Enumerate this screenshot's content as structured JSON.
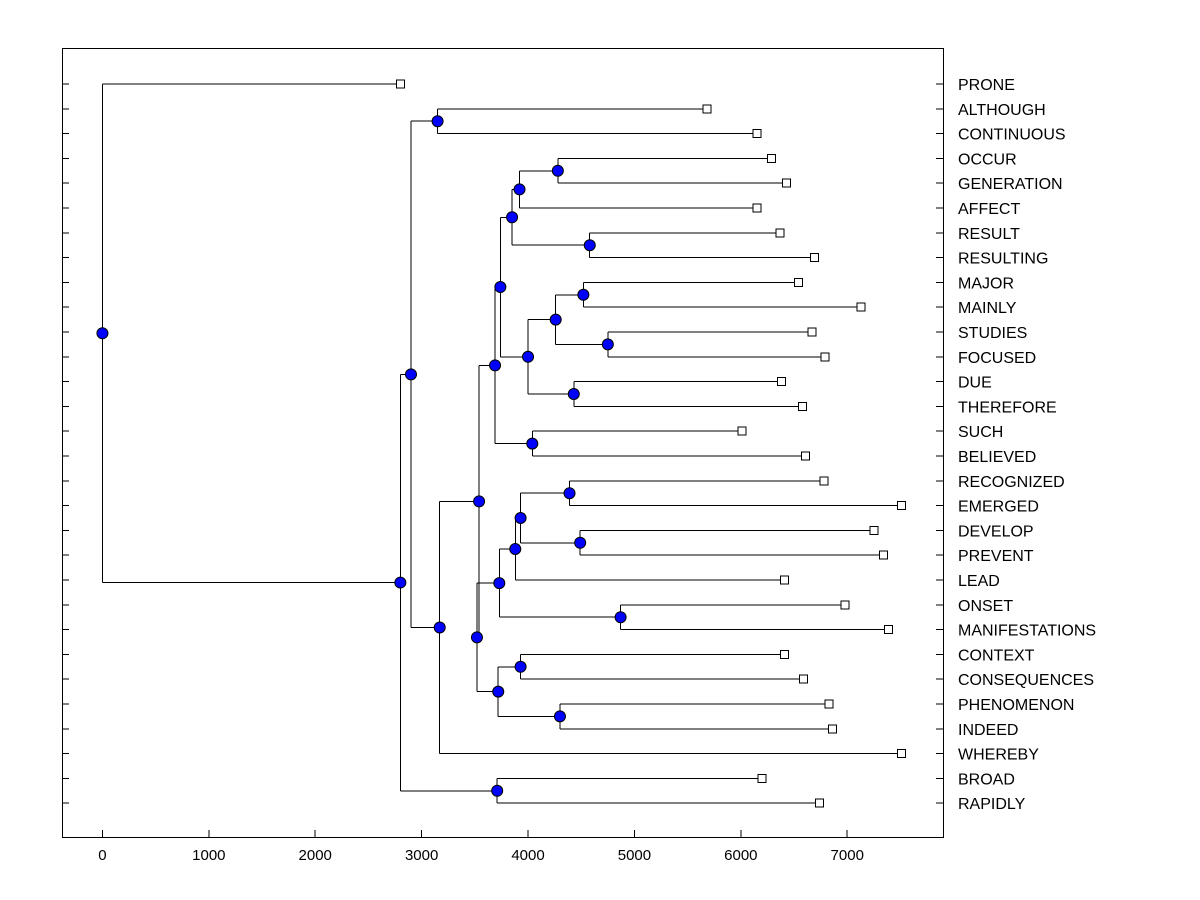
{
  "chart_data": {
    "type": "dendrogram",
    "title": "",
    "xlabel": "",
    "ylabel": "",
    "xlim": [
      -380,
      7900
    ],
    "xticks": [
      0,
      1000,
      2000,
      3000,
      4000,
      5000,
      6000,
      7000
    ],
    "grid": false,
    "legend": "none",
    "leaves": [
      "PRONE",
      "ALTHOUGH",
      "CONTINUOUS",
      "OCCUR",
      "GENERATION",
      "AFFECT",
      "RESULT",
      "RESULTING",
      "MAJOR",
      "MAINLY",
      "STUDIES",
      "FOCUSED",
      "DUE",
      "THEREFORE",
      "SUCH",
      "BELIEVED",
      "RECOGNIZED",
      "EMERGED",
      "DEVELOP",
      "PREVENT",
      "LEAD",
      "ONSET",
      "MANIFESTATIONS",
      "CONTEXT",
      "CONSEQUENCES",
      "PHENOMENON",
      "INDEED",
      "WHEREBY",
      "BROAD",
      "RAPIDLY"
    ],
    "leaf_values": [
      2800,
      5680,
      6150,
      6290,
      6430,
      6150,
      6370,
      6690,
      6540,
      7130,
      6670,
      6790,
      6380,
      6580,
      6010,
      6610,
      6780,
      7510,
      7250,
      7340,
      6410,
      6980,
      7390,
      6410,
      6590,
      6830,
      6860,
      7510,
      6200,
      6740
    ],
    "root": 0,
    "merges": [
      {
        "id": "n1",
        "value": 3150,
        "children": [
          "ALTHOUGH",
          "CONTINUOUS"
        ]
      },
      {
        "id": "n2",
        "value": 4280,
        "children": [
          "OCCUR",
          "GENERATION"
        ]
      },
      {
        "id": "n3",
        "value": 3920,
        "children": [
          "n2",
          "AFFECT"
        ]
      },
      {
        "id": "n4",
        "value": 4580,
        "children": [
          "RESULT",
          "RESULTING"
        ]
      },
      {
        "id": "n5",
        "value": 3850,
        "children": [
          "n3",
          "n4"
        ]
      },
      {
        "id": "n6",
        "value": 4520,
        "children": [
          "MAJOR",
          "MAINLY"
        ]
      },
      {
        "id": "n7",
        "value": 4750,
        "children": [
          "STUDIES",
          "FOCUSED"
        ]
      },
      {
        "id": "n8",
        "value": 4260,
        "children": [
          "n6",
          "n7"
        ]
      },
      {
        "id": "n9",
        "value": 4430,
        "children": [
          "DUE",
          "THEREFORE"
        ]
      },
      {
        "id": "n10",
        "value": 4000,
        "children": [
          "n8",
          "n9"
        ]
      },
      {
        "id": "n11",
        "value": 3740,
        "children": [
          "n5",
          "n10"
        ]
      },
      {
        "id": "n12",
        "value": 4040,
        "children": [
          "SUCH",
          "BELIEVED"
        ]
      },
      {
        "id": "n13",
        "value": 3690,
        "children": [
          "n11",
          "n12"
        ]
      },
      {
        "id": "n14",
        "value": 4390,
        "children": [
          "RECOGNIZED",
          "EMERGED"
        ]
      },
      {
        "id": "n15",
        "value": 4490,
        "children": [
          "DEVELOP",
          "PREVENT"
        ]
      },
      {
        "id": "n16",
        "value": 3930,
        "children": [
          "n14",
          "n15"
        ]
      },
      {
        "id": "n17",
        "value": 3880,
        "children": [
          "n16",
          "LEAD"
        ]
      },
      {
        "id": "n18",
        "value": 4870,
        "children": [
          "ONSET",
          "MANIFESTATIONS"
        ]
      },
      {
        "id": "n19",
        "value": 3730,
        "children": [
          "n17",
          "n18"
        ]
      },
      {
        "id": "n20",
        "value": 3930,
        "children": [
          "CONTEXT",
          "CONSEQUENCES"
        ]
      },
      {
        "id": "n21",
        "value": 4300,
        "children": [
          "PHENOMENON",
          "INDEED"
        ]
      },
      {
        "id": "n22",
        "value": 3720,
        "children": [
          "n20",
          "n21"
        ]
      },
      {
        "id": "n23",
        "value": 3520,
        "children": [
          "n19",
          "n22"
        ]
      },
      {
        "id": "n24",
        "value": 3540,
        "children": [
          "n13",
          "n23"
        ]
      },
      {
        "id": "n25",
        "value": 3170,
        "children": [
          "n24",
          "WHEREBY"
        ]
      },
      {
        "id": "n26",
        "value": 2900,
        "children": [
          "n1",
          "n25"
        ]
      },
      {
        "id": "n27",
        "value": 3710,
        "children": [
          "BROAD",
          "RAPIDLY"
        ]
      },
      {
        "id": "n28",
        "value": 2800,
        "children": [
          "n26",
          "n27"
        ]
      },
      {
        "id": "n29",
        "value": 0,
        "children": [
          "PRONE",
          "n28"
        ]
      }
    ]
  },
  "colors": {
    "node_fill": "#0000ff",
    "leaf_fill": "#ffffff",
    "line": "#000000",
    "background": "#ffffff"
  }
}
